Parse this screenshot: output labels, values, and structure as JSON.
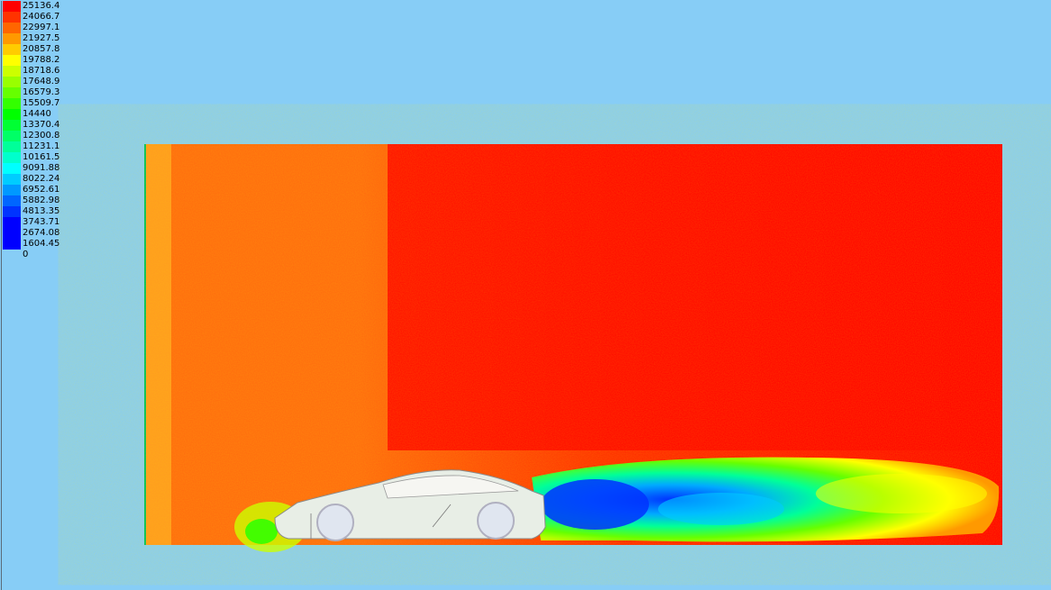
{
  "colorbar": {
    "labels": [
      "25136.4",
      "24066.7",
      "22997.1",
      "21927.5",
      "20857.8",
      "19788.2",
      "18718.6",
      "17648.9",
      "16579.3",
      "15509.7",
      "14440",
      "13370.4",
      "12300.8",
      "11231.1",
      "10161.5",
      "9091.88",
      "8022.24",
      "6952.61",
      "5882.98",
      "4813.35",
      "3743.71",
      "2674.08",
      "1604.45",
      "0"
    ],
    "colors": [
      "#ff0000",
      "#ff3300",
      "#ff6600",
      "#ff9900",
      "#ffcc00",
      "#ffff00",
      "#ccff00",
      "#99ff00",
      "#66ff00",
      "#33ff00",
      "#00ff00",
      "#00ff33",
      "#00ff66",
      "#00ff99",
      "#00ffcc",
      "#00ffff",
      "#00ccff",
      "#0099ff",
      "#0066ff",
      "#0033ff",
      "#0000ff",
      "#0000ff",
      "#0000ff",
      "#0000ff"
    ]
  },
  "colors": {
    "background": "#87cdf6",
    "field_high": "#ff0000",
    "field_upstream": "#ff6a10",
    "wake_low": "#0033ff",
    "car_body": "#e8eee6"
  }
}
